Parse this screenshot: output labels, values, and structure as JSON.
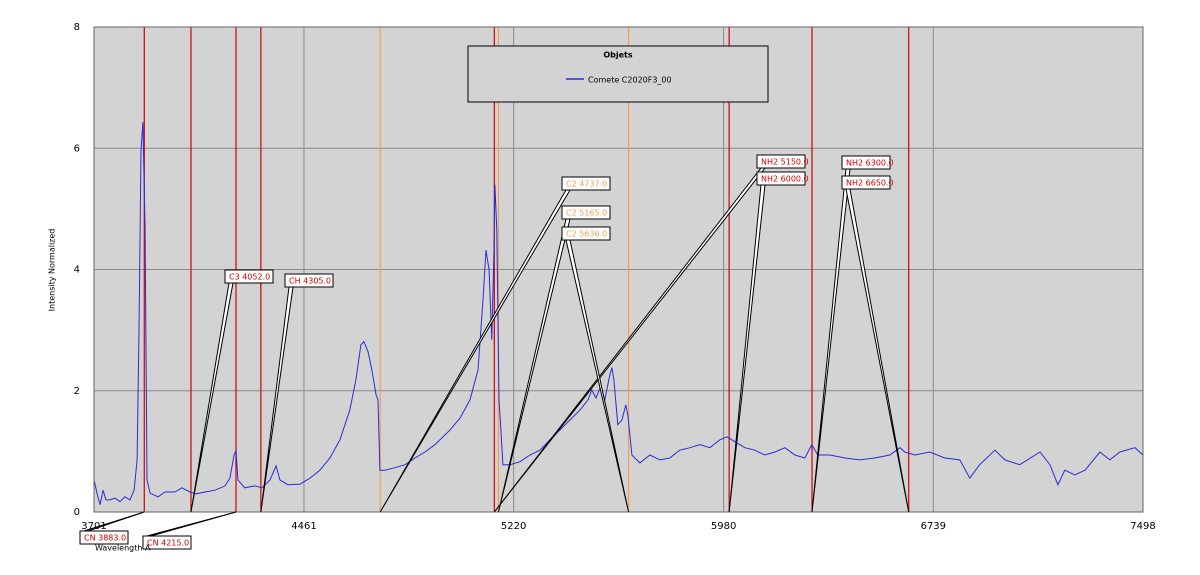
{
  "chart_data": {
    "type": "line",
    "x_label": "Wavelength A",
    "y_label": "Intensity Normalized",
    "legend_title": "Objets",
    "xlim": [
      3701,
      7498
    ],
    "xticks": [
      3701,
      4461,
      5220,
      5980,
      6739,
      7498
    ],
    "ylim": [
      0,
      8
    ],
    "yticks": [
      0,
      2,
      4,
      6,
      8
    ],
    "grid": true,
    "x": [
      3701,
      3712,
      3723,
      3734,
      3744,
      3759,
      3777,
      3795,
      3813,
      3831,
      3846,
      3857,
      3864,
      3871,
      3878,
      3886,
      3893,
      3904,
      3933,
      3958,
      3994,
      4019,
      4048,
      4070,
      4103,
      4139,
      4175,
      4193,
      4208,
      4215,
      4222,
      4247,
      4284,
      4309,
      4338,
      4360,
      4374,
      4403,
      4447,
      4483,
      4519,
      4555,
      4591,
      4627,
      4649,
      4667,
      4678,
      4693,
      4707,
      4722,
      4729,
      4736,
      4754,
      4790,
      4827,
      4863,
      4899,
      4935,
      4989,
      5026,
      5062,
      5091,
      5109,
      5120,
      5131,
      5141,
      5149,
      5152,
      5159,
      5167,
      5174,
      5181,
      5206,
      5243,
      5279,
      5315,
      5351,
      5387,
      5424,
      5460,
      5489,
      5503,
      5518,
      5533,
      5550,
      5568,
      5576,
      5583,
      5597,
      5612,
      5626,
      5633,
      5648,
      5677,
      5713,
      5749,
      5785,
      5821,
      5858,
      5894,
      5930,
      5966,
      5992,
      6021,
      6057,
      6093,
      6129,
      6166,
      6202,
      6238,
      6274,
      6299,
      6321,
      6365,
      6419,
      6473,
      6527,
      6582,
      6618,
      6636,
      6672,
      6726,
      6781,
      6835,
      6871,
      6907,
      6962,
      6998,
      7052,
      7125,
      7161,
      7190,
      7215,
      7251,
      7288,
      7342,
      7378,
      7414,
      7469,
      7498
    ],
    "series": [
      {
        "name": "Comete C2020F3_00",
        "color": "#2b2bd6",
        "values": [
          0.53,
          0.31,
          0.12,
          0.36,
          0.2,
          0.2,
          0.23,
          0.17,
          0.25,
          0.2,
          0.36,
          0.86,
          3.0,
          5.97,
          6.43,
          4.65,
          0.53,
          0.31,
          0.25,
          0.33,
          0.33,
          0.4,
          0.33,
          0.3,
          0.33,
          0.36,
          0.43,
          0.56,
          0.94,
          1.02,
          0.53,
          0.4,
          0.43,
          0.4,
          0.53,
          0.76,
          0.53,
          0.45,
          0.46,
          0.56,
          0.69,
          0.89,
          1.19,
          1.68,
          2.18,
          2.76,
          2.81,
          2.64,
          2.34,
          1.93,
          1.85,
          0.69,
          0.69,
          0.73,
          0.78,
          0.89,
          0.99,
          1.11,
          1.35,
          1.55,
          1.85,
          2.34,
          3.5,
          4.32,
          3.99,
          2.84,
          4.32,
          5.4,
          4.65,
          1.85,
          1.35,
          0.78,
          0.78,
          0.83,
          0.94,
          1.02,
          1.19,
          1.35,
          1.52,
          1.68,
          1.85,
          2.01,
          1.88,
          2.05,
          1.85,
          2.26,
          2.38,
          2.18,
          1.44,
          1.52,
          1.77,
          1.6,
          0.94,
          0.81,
          0.94,
          0.86,
          0.89,
          1.02,
          1.06,
          1.11,
          1.06,
          1.19,
          1.24,
          1.16,
          1.06,
          1.02,
          0.94,
          0.99,
          1.06,
          0.94,
          0.89,
          1.11,
          0.94,
          0.94,
          0.89,
          0.86,
          0.89,
          0.94,
          1.06,
          0.99,
          0.94,
          0.99,
          0.89,
          0.86,
          0.56,
          0.78,
          1.02,
          0.86,
          0.78,
          0.99,
          0.78,
          0.45,
          0.69,
          0.61,
          0.69,
          0.99,
          0.86,
          0.99,
          1.06,
          0.94
        ]
      }
    ],
    "markers": [
      {
        "label": "CN 3883.0",
        "value": 3883,
        "color": "#d00000"
      },
      {
        "label": "C3 4052.0",
        "value": 4052,
        "color": "#d00000"
      },
      {
        "label": "CN 4215.0",
        "value": 4215,
        "color": "#d00000"
      },
      {
        "label": "CH 4305.0",
        "value": 4305,
        "color": "#d00000"
      },
      {
        "label": "C2 4737.0",
        "value": 4737,
        "color": "#f0a050"
      },
      {
        "label": "NH2 5150.0",
        "value": 5150,
        "color": "#d00000"
      },
      {
        "label": "C2 5165.0",
        "value": 5165,
        "color": "#f0a050"
      },
      {
        "label": "C2 5636.0",
        "value": 5636,
        "color": "#f0a050"
      },
      {
        "label": "NH2 6000.0",
        "value": 6000,
        "color": "#d00000"
      },
      {
        "label": "NH2 6300.0",
        "value": 6300,
        "color": "#d00000"
      },
      {
        "label": "NH2 6650.0",
        "value": 6650,
        "color": "#d00000"
      }
    ]
  }
}
